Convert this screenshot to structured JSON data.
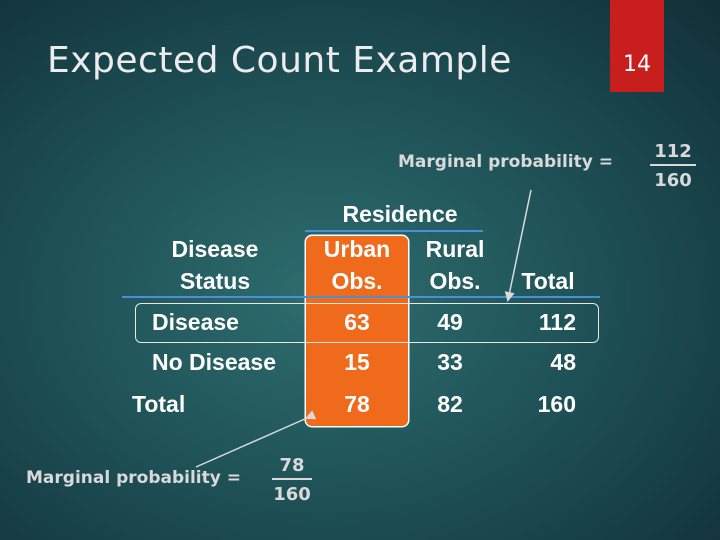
{
  "slide": {
    "title": "Expected Count Example",
    "page_number": "14"
  },
  "marginal_top": {
    "label": "Marginal probability =",
    "numerator": "112",
    "denominator": "160"
  },
  "marginal_bottom": {
    "label": "Marginal probability =",
    "numerator": "78",
    "denominator": "160"
  },
  "table": {
    "group_header": "Residence",
    "row_header_line1": "Disease",
    "row_header_line2": "Status",
    "columns": [
      {
        "line1": "Urban",
        "line2": "Obs."
      },
      {
        "line1": "Rural",
        "line2": "Obs."
      },
      {
        "line1": "",
        "line2": "Total"
      }
    ],
    "rows": [
      {
        "label": "Disease",
        "values": [
          "63",
          "49",
          "112"
        ]
      },
      {
        "label": "No Disease",
        "values": [
          "15",
          "33",
          "48"
        ]
      },
      {
        "label": "Total",
        "values": [
          "78",
          "82",
          "160"
        ]
      }
    ]
  },
  "colors": {
    "background": "#1f5358",
    "accent_red": "#c91e1e",
    "highlight_orange": "#f06a1b",
    "rule_blue": "#4a8fd4"
  }
}
